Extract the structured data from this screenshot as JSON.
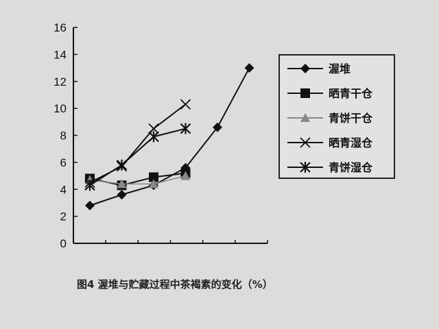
{
  "chart_data": {
    "type": "line",
    "title": "",
    "xlabel": "",
    "ylabel": "",
    "ylim": [
      0,
      16
    ],
    "yticks": [
      0,
      2,
      4,
      6,
      8,
      10,
      12,
      14,
      16
    ],
    "x_count": 7,
    "legend_position": "right",
    "grid": false,
    "caption": "图4   渥堆与贮藏过程中茶褐素的变化（%）",
    "series": [
      {
        "name": "渥堆",
        "marker": "diamond",
        "color": "#111111",
        "values": [
          2.8,
          3.6,
          4.3,
          5.6,
          8.6,
          13.0
        ]
      },
      {
        "name": "晒青干仓",
        "marker": "square",
        "color": "#111111",
        "values": [
          4.8,
          4.3,
          4.9,
          5.2
        ]
      },
      {
        "name": "青饼干仓",
        "marker": "triangle",
        "color": "#888888",
        "values": [
          4.7,
          4.4,
          4.4,
          5.0
        ]
      },
      {
        "name": "晒青湿仓",
        "marker": "x",
        "color": "#111111",
        "values": [
          4.5,
          5.7,
          8.5,
          10.3
        ]
      },
      {
        "name": "青饼湿仓",
        "marker": "star",
        "color": "#111111",
        "values": [
          4.3,
          5.8,
          7.9,
          8.5
        ]
      }
    ]
  }
}
